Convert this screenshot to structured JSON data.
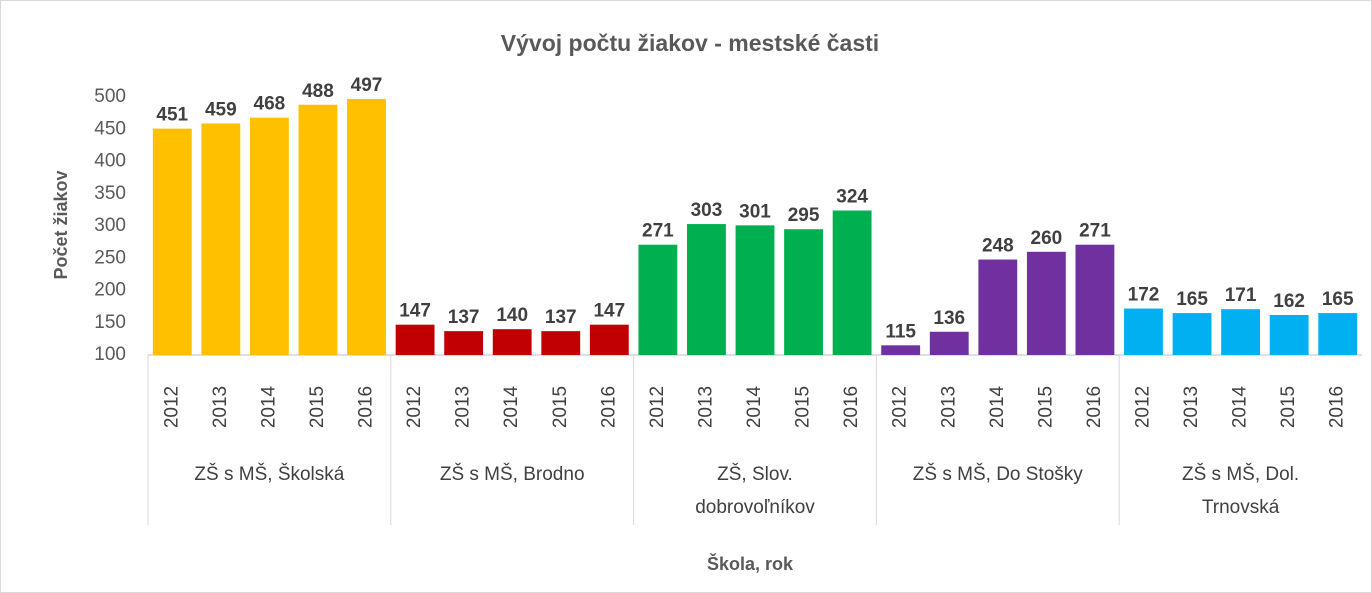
{
  "chart_data": {
    "type": "bar",
    "title": "Vývoj počtu žiakov - mestské časti",
    "y_label": "Počet žiakov",
    "x_label": "Škola, rok",
    "ylim": [
      100,
      500
    ],
    "yticks": [
      100,
      150,
      200,
      250,
      300,
      350,
      400,
      450,
      500
    ],
    "grid": false,
    "groups": [
      {
        "name": "ZŠ s MŠ, Školská",
        "color": "#ffc000",
        "categories": [
          "2012",
          "2013",
          "2014",
          "2015",
          "2016"
        ],
        "values": [
          451,
          459,
          468,
          488,
          497
        ]
      },
      {
        "name": "ZŠ s MŠ, Brodno",
        "color": "#c00000",
        "categories": [
          "2012",
          "2013",
          "2014",
          "2015",
          "2016"
        ],
        "values": [
          147,
          137,
          140,
          137,
          147
        ]
      },
      {
        "name": "ZŠ, Slov. dobrovoľníkov",
        "color": "#00b050",
        "categories": [
          "2012",
          "2013",
          "2014",
          "2015",
          "2016"
        ],
        "values": [
          271,
          303,
          301,
          295,
          324
        ]
      },
      {
        "name": "ZŠ s MŠ, Do Stošky",
        "color": "#7030a0",
        "categories": [
          "2012",
          "2013",
          "2014",
          "2015",
          "2016"
        ],
        "values": [
          115,
          136,
          248,
          260,
          271
        ]
      },
      {
        "name": "ZŠ s MŠ, Dol. Trnovská",
        "color": "#00b0f0",
        "categories": [
          "2012",
          "2013",
          "2014",
          "2015",
          "2016"
        ],
        "values": [
          172,
          165,
          171,
          162,
          165
        ]
      }
    ]
  }
}
